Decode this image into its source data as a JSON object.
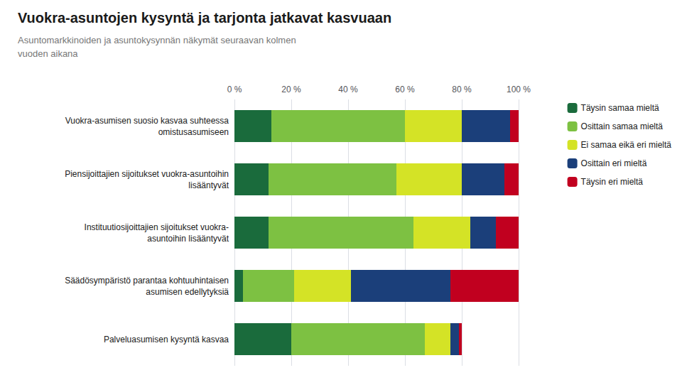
{
  "chart_data": {
    "type": "bar",
    "orientation": "horizontal",
    "stacked": true,
    "title": "Vuokra-asuntojen kysyntä ja tarjonta jatkavat kasvuaan",
    "subtitle": "Asuntomarkkinoiden ja asuntokysynnän näkymät seuraavan kolmen\nvuoden aikana",
    "categories": [
      "Vuokra-asumisen suosio kasvaa suhteessa\nomistusasumiseen",
      "Piensijoittajien sijoitukset vuokra-asuntoihin\nlisääntyvät",
      "Instituutiosijoittajien sijoitukset vuokra-\nasuntoihin lisääntyvät",
      "Säädösympäristö parantaa kohtuuhintaisen\nasumisen edellytyksiä",
      "Palveluasumisen kysyntä kasvaa"
    ],
    "series": [
      {
        "name": "Täysin samaa mieltä",
        "color": "#1a6b3c",
        "values": [
          13,
          12,
          12,
          3,
          20
        ]
      },
      {
        "name": "Osittain samaa mieltä",
        "color": "#7dc142",
        "values": [
          47,
          45,
          51,
          18,
          47
        ]
      },
      {
        "name": "Ei samaa eikä eri mieltä",
        "color": "#d4e326",
        "values": [
          20,
          23,
          20,
          20,
          9
        ]
      },
      {
        "name": "Osittain eri mieltä",
        "color": "#1b3f7a",
        "values": [
          17,
          15,
          9,
          35,
          3
        ]
      },
      {
        "name": "Täysin eri mieltä",
        "color": "#c1001f",
        "values": [
          3,
          5,
          8,
          24,
          1
        ]
      }
    ],
    "xlim": [
      0,
      100
    ],
    "xticks": [
      {
        "value": 0,
        "label": "0 %"
      },
      {
        "value": 20,
        "label": "20 %"
      },
      {
        "value": 40,
        "label": "40 %"
      },
      {
        "value": 60,
        "label": "60 %"
      },
      {
        "value": 80,
        "label": "80 %"
      },
      {
        "value": 100,
        "label": "100 %"
      }
    ],
    "grid": true,
    "legend": "right"
  }
}
